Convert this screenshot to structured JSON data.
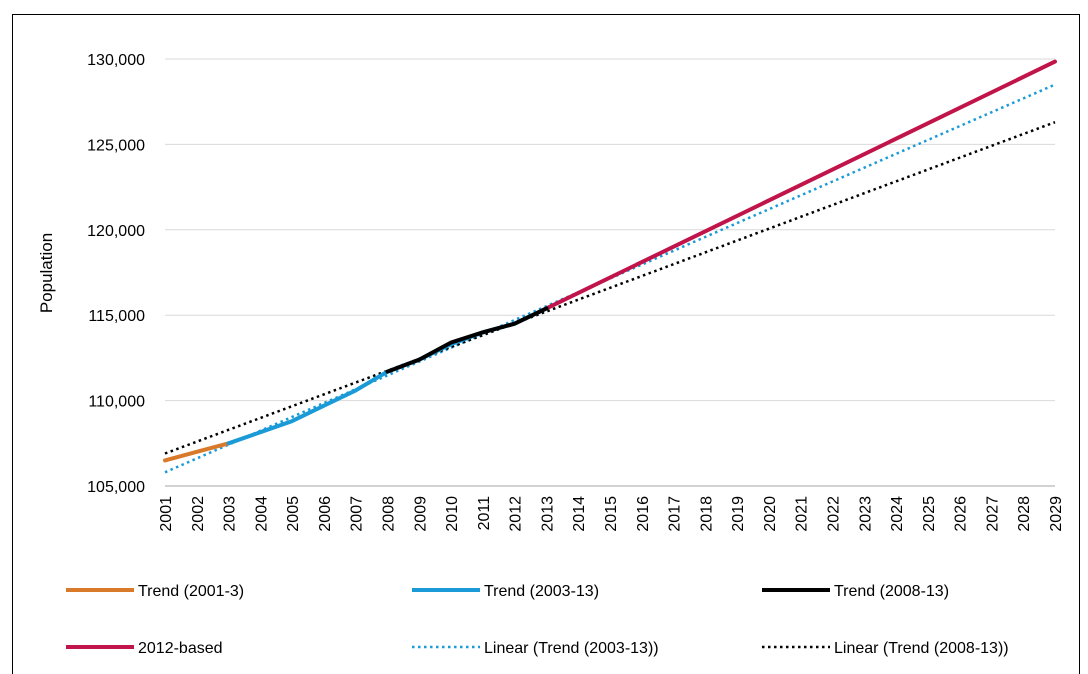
{
  "chart_data": {
    "type": "line",
    "title": "",
    "xlabel": "",
    "ylabel": "Population",
    "ylim": [
      105000,
      130000
    ],
    "yticks": [
      "105,000",
      "110,000",
      "115,000",
      "120,000",
      "125,000",
      "130,000"
    ],
    "ytick_values": [
      105000,
      110000,
      115000,
      120000,
      125000,
      130000
    ],
    "categories": [
      "2001",
      "2002",
      "2003",
      "2004",
      "2005",
      "2006",
      "2007",
      "2008",
      "2009",
      "2010",
      "2011",
      "2012",
      "2013",
      "2014",
      "2015",
      "2016",
      "2017",
      "2018",
      "2019",
      "2020",
      "2021",
      "2022",
      "2023",
      "2024",
      "2025",
      "2026",
      "2027",
      "2028",
      "2029"
    ],
    "grid": true,
    "legend_position": "bottom",
    "series": [
      {
        "name": "Trend (2001-3)",
        "color": "#D97A2B",
        "style": "solid",
        "x": [
          "2001",
          "2002",
          "2003"
        ],
        "y": [
          106500,
          107000,
          107500
        ]
      },
      {
        "name": "Trend (2003-13)",
        "color": "#1A9AD6",
        "style": "solid",
        "x": [
          "2003",
          "2004",
          "2005",
          "2006",
          "2007",
          "2008",
          "2009",
          "2010",
          "2011",
          "2012",
          "2013"
        ],
        "y": [
          107500,
          108150,
          108800,
          109700,
          110600,
          111700,
          112400,
          113300,
          114000,
          114500,
          115400
        ]
      },
      {
        "name": "Trend (2008-13)",
        "color": "#000000",
        "style": "solid",
        "x": [
          "2008",
          "2009",
          "2010",
          "2011",
          "2012",
          "2013"
        ],
        "y": [
          111700,
          112400,
          113400,
          114000,
          114500,
          115400
        ]
      },
      {
        "name": "2012-based",
        "color": "#C0144A",
        "style": "solid",
        "x": [
          "2013",
          "2029"
        ],
        "y": [
          115400,
          129850
        ]
      },
      {
        "name": "Linear (Trend (2003-13))",
        "color": "#1A9AD6",
        "style": "dotted",
        "x": [
          "2001",
          "2029"
        ],
        "y": [
          105800,
          128500
        ]
      },
      {
        "name": "Linear (Trend (2008-13))",
        "color": "#000000",
        "style": "dotted",
        "x": [
          "2001",
          "2029"
        ],
        "y": [
          106900,
          126300
        ]
      }
    ]
  }
}
